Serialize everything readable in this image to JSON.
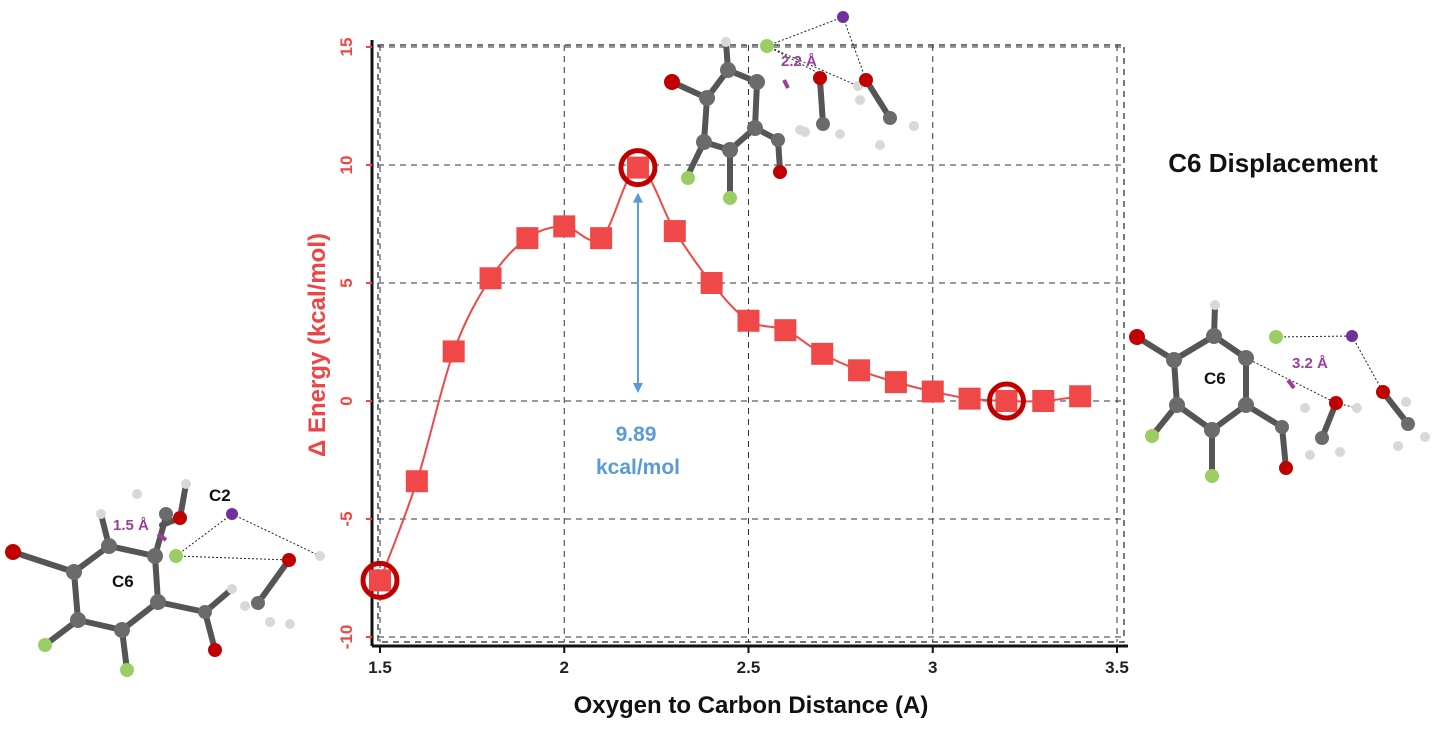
{
  "chart_data": {
    "type": "line",
    "title": "C6 Displacement",
    "xlabel": "Oxygen to Carbon Distance (A)",
    "ylabel": "Δ Energy (kcal/mol)",
    "xlim": [
      1.5,
      3.5
    ],
    "ylim": [
      -10,
      15
    ],
    "x_ticks": [
      "1.5",
      "2",
      "2.5",
      "3",
      "3.5"
    ],
    "y_ticks": [
      "15",
      "10",
      "5",
      "0",
      "-5",
      "-10"
    ],
    "grid": true,
    "series": [
      {
        "x": [
          1.5,
          1.6,
          1.7,
          1.8,
          1.9,
          2.0,
          2.1,
          2.2,
          2.3,
          2.4,
          2.5,
          2.6,
          2.7,
          2.8,
          2.9,
          3.0,
          3.1,
          3.2,
          3.3,
          3.4
        ],
        "y": [
          -7.6,
          -3.4,
          2.1,
          5.2,
          6.9,
          7.4,
          6.9,
          9.89,
          7.2,
          5.0,
          3.4,
          3.0,
          2.0,
          1.3,
          0.8,
          0.4,
          0.1,
          0.0,
          0.0,
          0.2
        ],
        "color": "#f04848"
      }
    ],
    "highlighted_points": [
      1.5,
      2.2,
      3.2
    ],
    "annotation": {
      "value": "9.89",
      "unit": "kcal/mol",
      "x": 2.2,
      "from_y": 0,
      "to_y": 9.89
    }
  },
  "molecules": {
    "left": {
      "labels": [
        "C2",
        "C6"
      ],
      "distance": "1.5 Å"
    },
    "top": {
      "distance": "2.2 Å"
    },
    "right": {
      "labels": [
        "C6"
      ],
      "distance": "3.2 Å"
    }
  },
  "colors": {
    "series": "#f04848",
    "highlight_ring": "#c00000",
    "annotation": "#5b9bd5",
    "carbon": "#6b6b6b",
    "oxygen": "#c00000",
    "fluorine": "#9acd63",
    "hydrogen": "#d8d8d8",
    "iodine": "#7030a0"
  }
}
